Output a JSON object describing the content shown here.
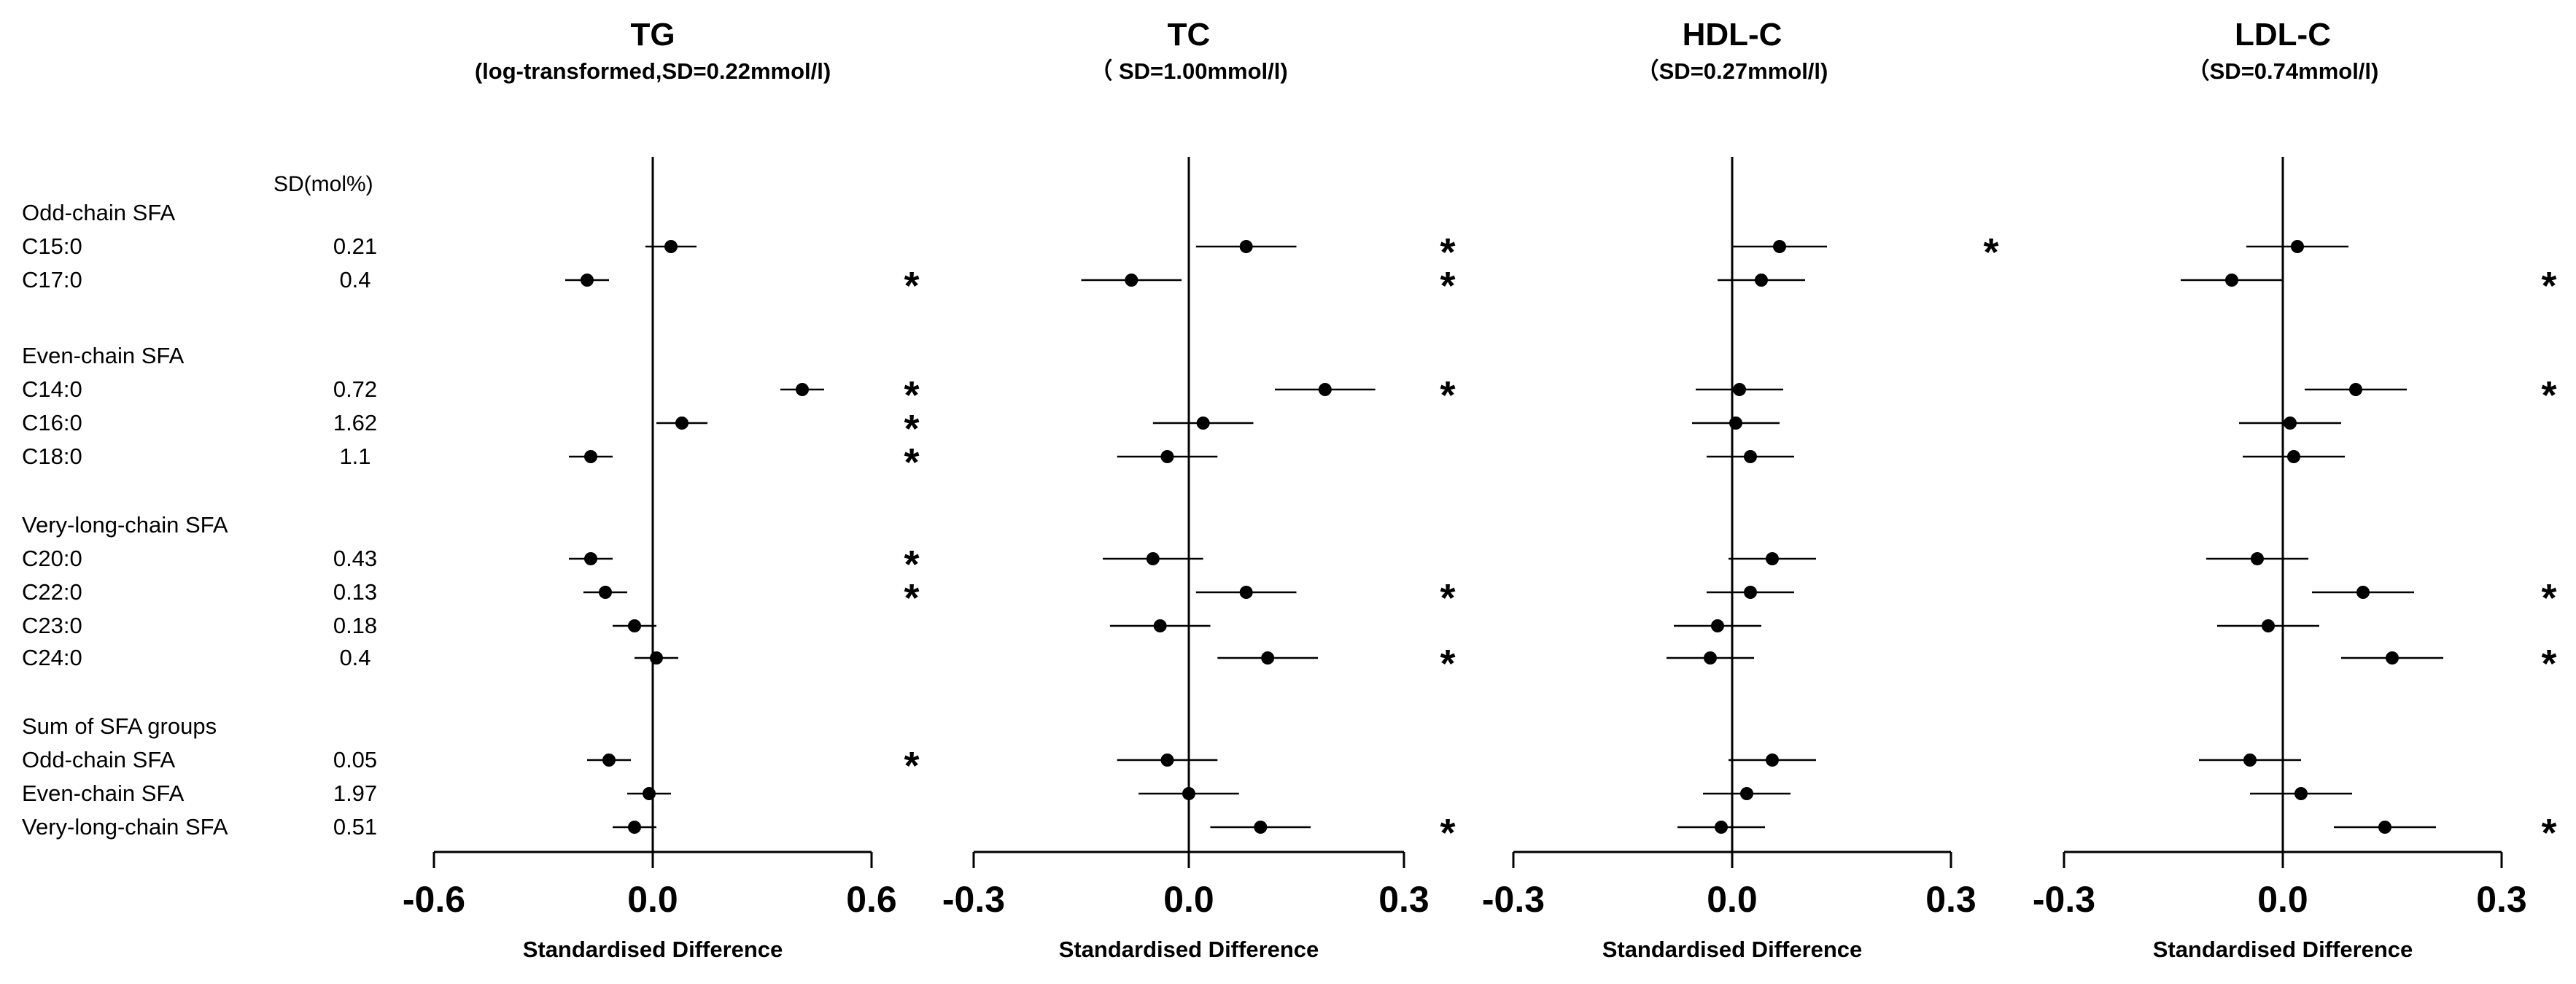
{
  "sd_header": "SD(mol%)",
  "rows": [
    {
      "type": "group",
      "label": "Odd-chain SFA",
      "sd": ""
    },
    {
      "type": "item",
      "label": "C15:0",
      "sd": "0.21"
    },
    {
      "type": "item",
      "label": "C17:0",
      "sd": "0.4"
    },
    {
      "type": "group",
      "label": "Even-chain SFA",
      "sd": ""
    },
    {
      "type": "item",
      "label": "C14:0",
      "sd": "0.72"
    },
    {
      "type": "item",
      "label": "C16:0",
      "sd": "1.62"
    },
    {
      "type": "item",
      "label": "C18:0",
      "sd": "1.1"
    },
    {
      "type": "group",
      "label": "Very-long-chain SFA",
      "sd": ""
    },
    {
      "type": "item",
      "label": "C20:0",
      "sd": "0.43"
    },
    {
      "type": "item",
      "label": "C22:0",
      "sd": "0.13"
    },
    {
      "type": "item",
      "label": "C23:0",
      "sd": "0.18"
    },
    {
      "type": "item",
      "label": "C24:0",
      "sd": "0.4"
    },
    {
      "type": "group",
      "label": "Sum of SFA groups",
      "sd": ""
    },
    {
      "type": "item",
      "label": "Odd-chain SFA",
      "sd": "0.05"
    },
    {
      "type": "item",
      "label": "Even-chain SFA",
      "sd": "1.97"
    },
    {
      "type": "item",
      "label": "Very-long-chain SFA",
      "sd": "0.51"
    }
  ],
  "significance_marker": "*",
  "chart_data": [
    {
      "type": "forest",
      "title": "TG",
      "subtitle": "(log-transformed,SD=0.22mmol/l)",
      "xlabel": "Standardised Difference",
      "xlim": [
        -0.6,
        0.6
      ],
      "ticks": [
        "-0.6",
        "0.0",
        "0.6"
      ],
      "tick_values": [
        -0.6,
        0.0,
        0.6
      ],
      "rows": [
        "C15:0",
        "C17:0",
        "C14:0",
        "C16:0",
        "C18:0",
        "C20:0",
        "C22:0",
        "C23:0",
        "C24:0",
        "Odd-chain SFA",
        "Even-chain SFA",
        "Very-long-chain SFA"
      ],
      "estimate": [
        0.05,
        -0.18,
        0.41,
        0.08,
        -0.17,
        -0.17,
        -0.13,
        -0.05,
        0.01,
        -0.12,
        -0.01,
        -0.05
      ],
      "ci_low": [
        -0.02,
        -0.24,
        0.35,
        0.01,
        -0.23,
        -0.23,
        -0.19,
        -0.11,
        -0.05,
        -0.18,
        -0.07,
        -0.11
      ],
      "ci_high": [
        0.12,
        -0.12,
        0.47,
        0.15,
        -0.11,
        -0.11,
        -0.07,
        0.01,
        0.07,
        -0.06,
        0.05,
        0.01
      ],
      "significant": [
        false,
        true,
        true,
        true,
        true,
        true,
        true,
        false,
        false,
        true,
        false,
        false
      ]
    },
    {
      "type": "forest",
      "title": "TC",
      "subtitle": "（  SD=1.00mmol/l)",
      "xlabel": "Standardised Difference",
      "xlim": [
        -0.3,
        0.3
      ],
      "ticks": [
        "-0.3",
        "0.0",
        "0.3"
      ],
      "tick_values": [
        -0.3,
        0.0,
        0.3
      ],
      "rows": [
        "C15:0",
        "C17:0",
        "C14:0",
        "C16:0",
        "C18:0",
        "C20:0",
        "C22:0",
        "C23:0",
        "C24:0",
        "Odd-chain SFA",
        "Even-chain SFA",
        "Very-long-chain SFA"
      ],
      "estimate": [
        0.08,
        -0.08,
        0.19,
        0.02,
        -0.03,
        -0.05,
        0.08,
        -0.04,
        0.11,
        -0.03,
        0.0,
        0.1
      ],
      "ci_low": [
        0.01,
        -0.15,
        0.12,
        -0.05,
        -0.1,
        -0.12,
        0.01,
        -0.11,
        0.04,
        -0.1,
        -0.07,
        0.03
      ],
      "ci_high": [
        0.15,
        -0.01,
        0.26,
        0.09,
        0.04,
        0.02,
        0.15,
        0.03,
        0.18,
        0.04,
        0.07,
        0.17
      ],
      "significant": [
        true,
        true,
        true,
        false,
        false,
        false,
        true,
        false,
        true,
        false,
        false,
        true
      ]
    },
    {
      "type": "forest",
      "title": "HDL-C",
      "subtitle": "（SD=0.27mmol/l)",
      "xlabel": "Standardised Difference",
      "xlim": [
        -0.3,
        0.3
      ],
      "ticks": [
        "-0.3",
        "0.0",
        "0.3"
      ],
      "tick_values": [
        -0.3,
        0.0,
        0.3
      ],
      "rows": [
        "C15:0",
        "C17:0",
        "C14:0",
        "C16:0",
        "C18:0",
        "C20:0",
        "C22:0",
        "C23:0",
        "C24:0",
        "Odd-chain SFA",
        "Even-chain SFA",
        "Very-long-chain SFA"
      ],
      "estimate": [
        0.065,
        0.04,
        0.01,
        0.005,
        0.025,
        0.055,
        0.025,
        -0.02,
        -0.03,
        0.055,
        0.02,
        -0.015
      ],
      "ci_low": [
        0.0,
        -0.02,
        -0.05,
        -0.055,
        -0.035,
        -0.005,
        -0.035,
        -0.08,
        -0.09,
        -0.005,
        -0.04,
        -0.075
      ],
      "ci_high": [
        0.13,
        0.1,
        0.07,
        0.065,
        0.085,
        0.115,
        0.085,
        0.04,
        0.03,
        0.115,
        0.08,
        0.045
      ],
      "significant": [
        true,
        false,
        false,
        false,
        false,
        false,
        false,
        false,
        false,
        false,
        false,
        false
      ]
    },
    {
      "type": "forest",
      "title": "LDL-C",
      "subtitle": "（SD=0.74mmol/l)",
      "xlabel": "Standardised Difference",
      "xlim": [
        -0.3,
        0.3
      ],
      "ticks": [
        "-0.3",
        "0.0",
        "0.3"
      ],
      "tick_values": [
        -0.3,
        0.0,
        0.3
      ],
      "rows": [
        "C15:0",
        "C17:0",
        "C14:0",
        "C16:0",
        "C18:0",
        "C20:0",
        "C22:0",
        "C23:0",
        "C24:0",
        "Odd-chain SFA",
        "Even-chain SFA",
        "Very-long-chain SFA"
      ],
      "estimate": [
        0.02,
        -0.07,
        0.1,
        0.01,
        0.015,
        -0.035,
        0.11,
        -0.02,
        0.15,
        -0.045,
        0.025,
        0.14
      ],
      "ci_low": [
        -0.05,
        -0.14,
        0.03,
        -0.06,
        -0.055,
        -0.105,
        0.04,
        -0.09,
        0.08,
        -0.115,
        -0.045,
        0.07
      ],
      "ci_high": [
        0.09,
        0.0,
        0.17,
        0.08,
        0.085,
        0.035,
        0.18,
        0.05,
        0.22,
        0.025,
        0.095,
        0.21
      ],
      "significant": [
        false,
        true,
        true,
        false,
        false,
        false,
        true,
        false,
        true,
        false,
        false,
        true
      ]
    }
  ]
}
